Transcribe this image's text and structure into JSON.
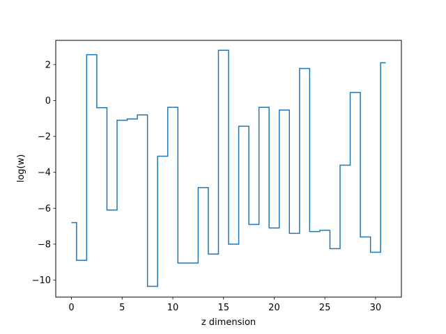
{
  "chart_data": {
    "type": "line",
    "drawstyle": "steps-mid",
    "title": "",
    "xlabel": "z dimension",
    "ylabel": "log(w)",
    "xlim": [
      -1.55,
      32.55
    ],
    "ylim": [
      -10.95,
      3.35
    ],
    "xticks": [
      0,
      5,
      10,
      15,
      20,
      25,
      30
    ],
    "xtick_labels": [
      "0",
      "5",
      "10",
      "15",
      "20",
      "25",
      "30"
    ],
    "yticks": [
      -10,
      -8,
      -6,
      -4,
      -2,
      0,
      2
    ],
    "ytick_labels": [
      "−10",
      "−8",
      "−6",
      "−4",
      "−2",
      "0",
      "2"
    ],
    "grid": false,
    "legend": "none",
    "series": [
      {
        "color": "#1f77b4",
        "x": [
          0,
          1,
          2,
          3,
          4,
          5,
          6,
          7,
          8,
          9,
          10,
          11,
          12,
          13,
          14,
          15,
          16,
          17,
          18,
          19,
          20,
          21,
          22,
          23,
          24,
          25,
          26,
          27,
          28,
          29,
          30,
          31
        ],
        "y": [
          -6.8,
          -8.9,
          2.55,
          -0.4,
          -6.1,
          -1.1,
          -1.03,
          -0.8,
          -10.35,
          -3.1,
          -0.38,
          -9.05,
          -9.05,
          -4.85,
          -8.55,
          2.8,
          -8.0,
          -1.43,
          -6.9,
          -0.38,
          -7.1,
          -0.53,
          -7.4,
          1.78,
          -7.3,
          -7.23,
          -8.25,
          -3.6,
          0.45,
          -7.6,
          -8.45,
          2.1
        ]
      }
    ]
  }
}
